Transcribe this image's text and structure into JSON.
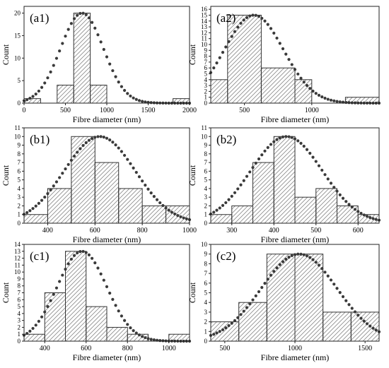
{
  "chart_data": [
    {
      "id": "a1",
      "panel_label": "(a1)",
      "type": "bar",
      "xlabel": "Fibre diameter (nm)",
      "ylabel": "Count",
      "xlim": [
        0,
        2000
      ],
      "ylim": [
        0,
        21.5
      ],
      "xticks": [
        0,
        500,
        1000,
        1500,
        2000
      ],
      "yticks": [
        0,
        5,
        10,
        15,
        20
      ],
      "bins": [
        {
          "x0": 0,
          "x1": 200,
          "count": 1
        },
        {
          "x0": 400,
          "x1": 600,
          "count": 4
        },
        {
          "x0": 600,
          "x1": 800,
          "count": 20
        },
        {
          "x0": 800,
          "x1": 1000,
          "count": 4
        },
        {
          "x0": 1800,
          "x1": 2000,
          "count": 1
        }
      ],
      "fit": {
        "type": "gaussian",
        "mu": 700,
        "sigma": 260,
        "amplitude": 20
      }
    },
    {
      "id": "a2",
      "panel_label": "(a2)",
      "type": "bar",
      "xlabel": "Fibre diameter (nm)",
      "ylabel": "Count",
      "xlim": [
        250,
        1500
      ],
      "ylim": [
        0,
        16.5
      ],
      "xticks": [
        500,
        1000
      ],
      "yticks": [
        0,
        1,
        2,
        3,
        4,
        5,
        6,
        7,
        8,
        9,
        10,
        11,
        12,
        13,
        14,
        15,
        16
      ],
      "bins": [
        {
          "x0": 250,
          "x1": 375,
          "count": 4
        },
        {
          "x0": 375,
          "x1": 625,
          "count": 15
        },
        {
          "x0": 625,
          "x1": 875,
          "count": 6
        },
        {
          "x0": 875,
          "x1": 1000,
          "count": 4
        },
        {
          "x0": 1250,
          "x1": 1500,
          "count": 1
        }
      ],
      "fit": {
        "type": "gaussian",
        "mu": 570,
        "sigma": 220,
        "amplitude": 15
      }
    },
    {
      "id": "b1",
      "panel_label": "(b1)",
      "type": "bar",
      "xlabel": "Fibre diameter (nm)",
      "ylabel": "Count",
      "xlim": [
        300,
        1000
      ],
      "ylim": [
        0,
        11
      ],
      "xticks": [
        400,
        600,
        800,
        1000
      ],
      "yticks": [
        0,
        1,
        2,
        3,
        4,
        5,
        6,
        7,
        8,
        9,
        10,
        11
      ],
      "bins": [
        {
          "x0": 300,
          "x1": 400,
          "count": 1
        },
        {
          "x0": 400,
          "x1": 500,
          "count": 4
        },
        {
          "x0": 500,
          "x1": 600,
          "count": 10
        },
        {
          "x0": 600,
          "x1": 700,
          "count": 7
        },
        {
          "x0": 700,
          "x1": 800,
          "count": 4
        },
        {
          "x0": 800,
          "x1": 900,
          "count": 2
        },
        {
          "x0": 900,
          "x1": 1000,
          "count": 2
        }
      ],
      "fit": {
        "type": "gaussian",
        "mu": 620,
        "sigma": 150,
        "amplitude": 10
      }
    },
    {
      "id": "b2",
      "panel_label": "(b2)",
      "type": "bar",
      "xlabel": "Fibre diameter (nm)",
      "ylabel": "Count",
      "xlim": [
        250,
        650
      ],
      "ylim": [
        0,
        11
      ],
      "xticks": [
        300,
        400,
        500,
        600
      ],
      "yticks": [
        0,
        1,
        2,
        3,
        4,
        5,
        6,
        7,
        8,
        9,
        10,
        11
      ],
      "bins": [
        {
          "x0": 250,
          "x1": 300,
          "count": 1
        },
        {
          "x0": 300,
          "x1": 350,
          "count": 2
        },
        {
          "x0": 350,
          "x1": 400,
          "count": 7
        },
        {
          "x0": 400,
          "x1": 450,
          "count": 10
        },
        {
          "x0": 450,
          "x1": 500,
          "count": 3
        },
        {
          "x0": 500,
          "x1": 550,
          "count": 4
        },
        {
          "x0": 550,
          "x1": 600,
          "count": 2
        },
        {
          "x0": 600,
          "x1": 650,
          "count": 1
        }
      ],
      "fit": {
        "type": "gaussian",
        "mu": 430,
        "sigma": 85,
        "amplitude": 10
      }
    },
    {
      "id": "c1",
      "panel_label": "(c1)",
      "type": "bar",
      "xlabel": "Fibre diameter (nm)",
      "ylabel": "Count",
      "xlim": [
        300,
        1100
      ],
      "ylim": [
        0,
        14
      ],
      "xticks": [
        400,
        600,
        800,
        1000
      ],
      "yticks": [
        0,
        1,
        2,
        3,
        4,
        5,
        6,
        7,
        8,
        9,
        10,
        11,
        12,
        13,
        14
      ],
      "bins": [
        {
          "x0": 300,
          "x1": 400,
          "count": 1
        },
        {
          "x0": 400,
          "x1": 500,
          "count": 7
        },
        {
          "x0": 500,
          "x1": 600,
          "count": 13
        },
        {
          "x0": 600,
          "x1": 700,
          "count": 5
        },
        {
          "x0": 700,
          "x1": 800,
          "count": 2
        },
        {
          "x0": 800,
          "x1": 900,
          "count": 1
        },
        {
          "x0": 1000,
          "x1": 1100,
          "count": 1
        }
      ],
      "fit": {
        "type": "gaussian",
        "mu": 580,
        "sigma": 120,
        "amplitude": 13
      }
    },
    {
      "id": "c2",
      "panel_label": "(c2)",
      "type": "bar",
      "xlabel": "Fibre diameter (nm)",
      "ylabel": "Count",
      "xlim": [
        400,
        1600
      ],
      "ylim": [
        0,
        10
      ],
      "xticks": [
        500,
        1000,
        1500
      ],
      "yticks": [
        0,
        1,
        2,
        3,
        4,
        5,
        6,
        7,
        8,
        9,
        10
      ],
      "bins": [
        {
          "x0": 400,
          "x1": 600,
          "count": 2
        },
        {
          "x0": 600,
          "x1": 800,
          "count": 4
        },
        {
          "x0": 800,
          "x1": 1000,
          "count": 9
        },
        {
          "x0": 1000,
          "x1": 1200,
          "count": 9
        },
        {
          "x0": 1200,
          "x1": 1400,
          "count": 3
        },
        {
          "x0": 1400,
          "x1": 1600,
          "count": 3
        }
      ],
      "fit": {
        "type": "gaussian",
        "mu": 1030,
        "sigma": 270,
        "amplitude": 9
      }
    }
  ]
}
